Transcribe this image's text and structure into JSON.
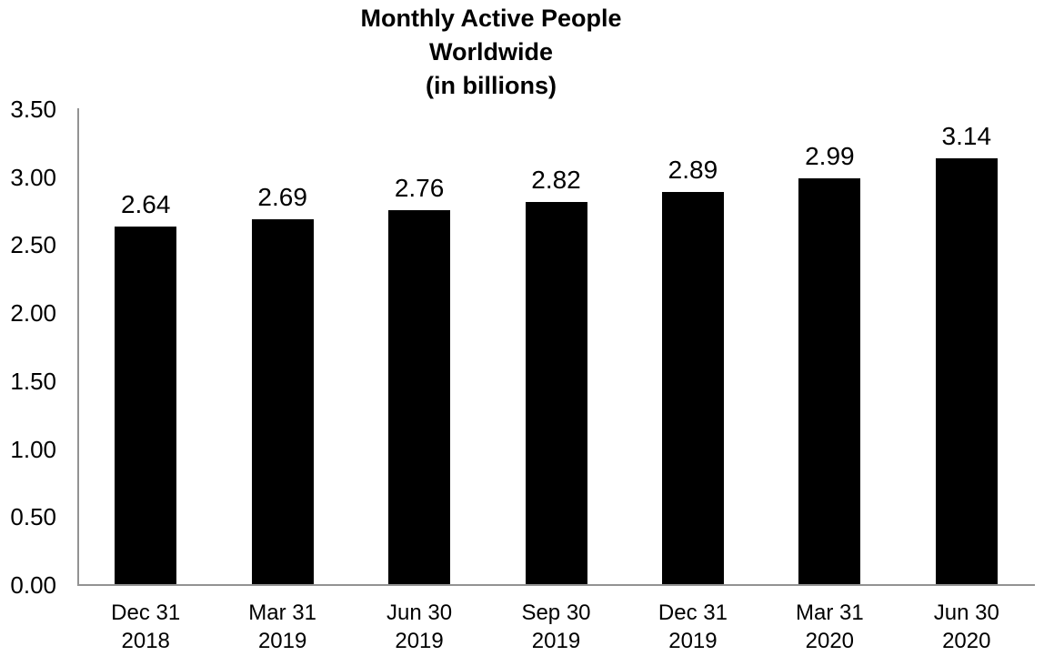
{
  "chart_data": {
    "type": "bar",
    "title_lines": [
      "Monthly Active People",
      "Worldwide",
      "(in billions)"
    ],
    "categories": [
      [
        "Dec 31",
        "2018"
      ],
      [
        "Mar 31",
        "2019"
      ],
      [
        "Jun 30",
        "2019"
      ],
      [
        "Sep 30",
        "2019"
      ],
      [
        "Dec 31",
        "2019"
      ],
      [
        "Mar 31",
        "2020"
      ],
      [
        "Jun 30",
        "2020"
      ]
    ],
    "values": [
      2.64,
      2.69,
      2.76,
      2.82,
      2.89,
      2.99,
      3.14
    ],
    "value_labels": [
      "2.64",
      "2.69",
      "2.76",
      "2.82",
      "2.89",
      "2.99",
      "3.14"
    ],
    "xlabel": "",
    "ylabel": "",
    "ylim": [
      0,
      3.5
    ],
    "y_tick_labels": [
      "0.00",
      "0.50",
      "1.00",
      "1.50",
      "2.00",
      "2.50",
      "3.00",
      "3.50"
    ],
    "grid": false,
    "legend": false,
    "colors": {
      "bar": "#000000",
      "axis": "#939393",
      "text": "#000000",
      "background": "#ffffff"
    }
  }
}
